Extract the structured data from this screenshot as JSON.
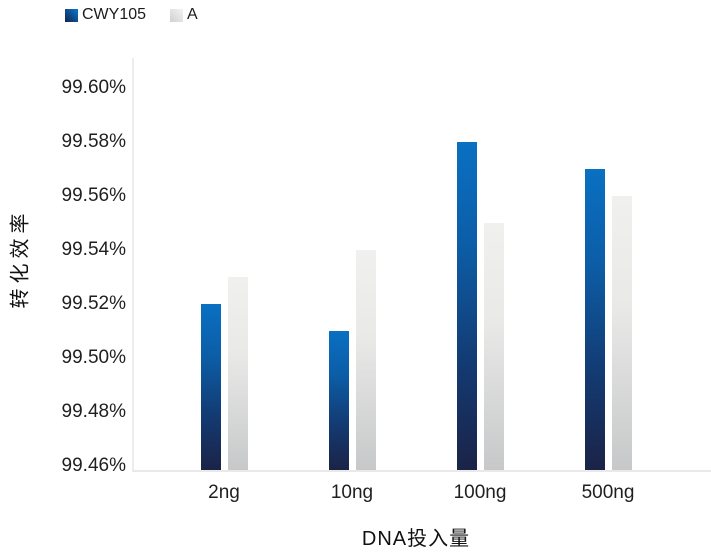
{
  "legend": {
    "items": [
      {
        "label": "CWY105",
        "swatch": "blue-gradient-swatch"
      },
      {
        "label": "A",
        "swatch": "gray-gradient-swatch"
      }
    ]
  },
  "chart_data": {
    "type": "bar",
    "title": "",
    "categories": [
      "2ng",
      "10ng",
      "100ng",
      "500ng"
    ],
    "series": [
      {
        "name": "CWY105",
        "values": [
          99.52,
          99.51,
          99.58,
          99.57
        ]
      },
      {
        "name": "A",
        "values": [
          99.53,
          99.54,
          99.55,
          99.56
        ]
      }
    ],
    "value_unit": "%",
    "xlabel": "DNA投入量",
    "ylabel": "转化效率",
    "ylim": [
      99.46,
      99.6
    ],
    "ytick_step": 0.02,
    "ytick_labels": [
      "99.46%",
      "99.48%",
      "99.50%",
      "99.52%",
      "99.54%",
      "99.56%",
      "99.58%",
      "99.60%"
    ],
    "grid": false,
    "legend_position": "top-left",
    "colors": {
      "cwy105_top": "#0a70c2",
      "cwy105_bottom": "#1b2347",
      "a_top": "#f0f0ef",
      "a_bottom": "#c7c8c9",
      "axis_line": "#e9e9e9",
      "text": "#1f1f1f"
    }
  }
}
